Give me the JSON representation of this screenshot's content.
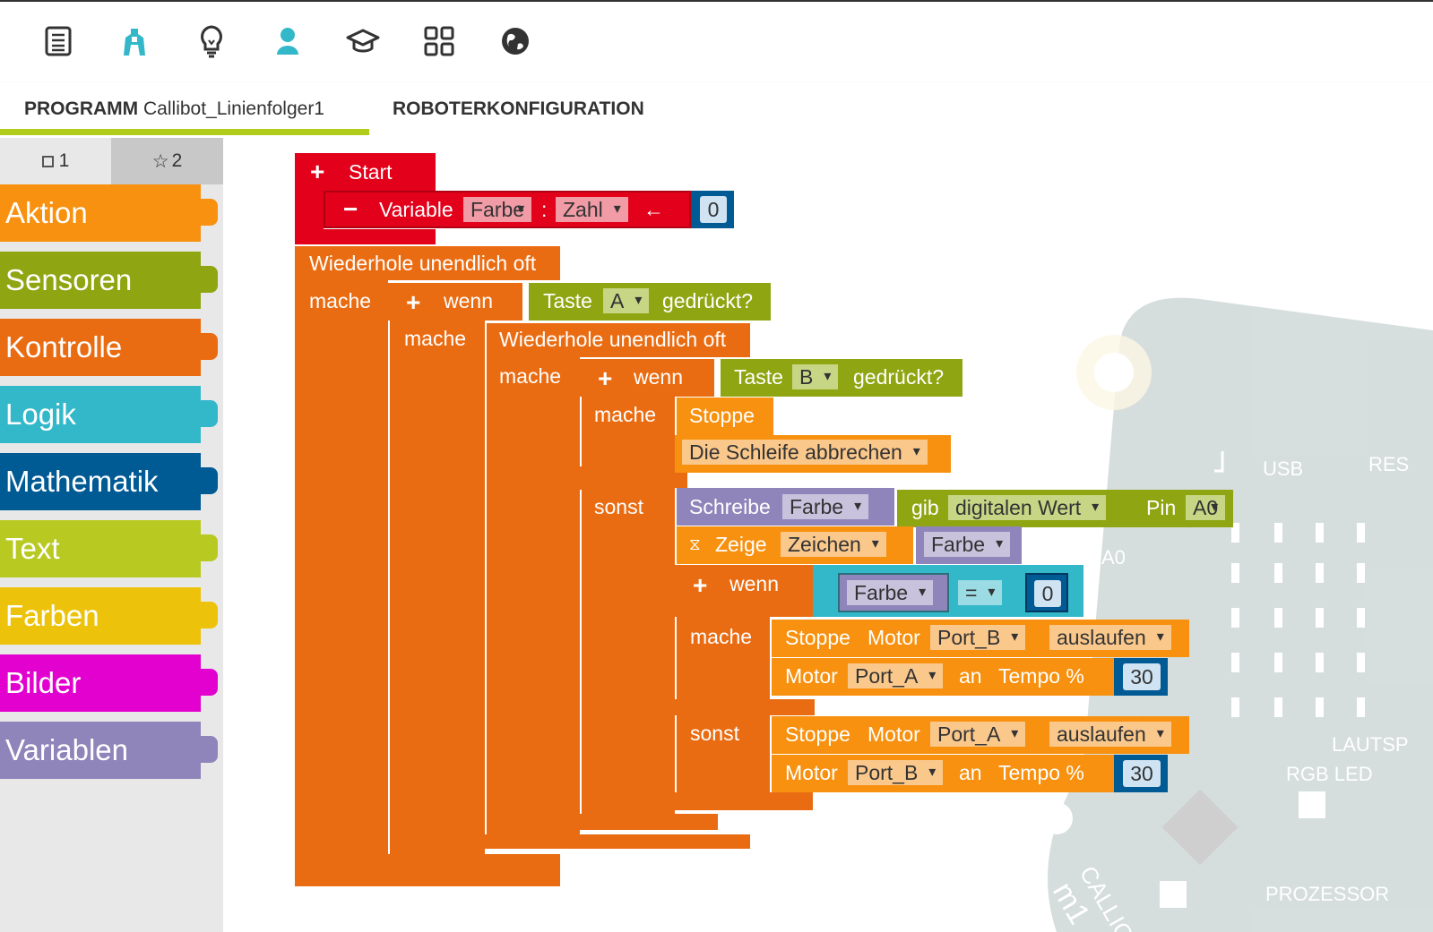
{
  "toolbar": {
    "icons": [
      "menu-list-icon",
      "robot-icon",
      "lightbulb-icon",
      "user-icon",
      "graduation-cap-icon",
      "apps-grid-icon",
      "globe-icon"
    ]
  },
  "tabs": {
    "program_prefix": "PROGRAMM",
    "program_name": "Callibot_Linienfolger1",
    "robot_config": "ROBOTERKONFIGURATION"
  },
  "sidebar": {
    "level1": "1",
    "level2": "2",
    "categories": [
      {
        "label": "Aktion",
        "color": "#f7910f"
      },
      {
        "label": "Sensoren",
        "color": "#8fa612"
      },
      {
        "label": "Kontrolle",
        "color": "#ea6c12"
      },
      {
        "label": "Logik",
        "color": "#33b8ca"
      },
      {
        "label": "Mathematik",
        "color": "#005a94"
      },
      {
        "label": "Text",
        "color": "#b8ca22"
      },
      {
        "label": "Farben",
        "color": "#ecc30a"
      },
      {
        "label": "Bilder",
        "color": "#e201cf"
      },
      {
        "label": "Variablen",
        "color": "#9085ba"
      }
    ]
  },
  "board_labels": {
    "usb": "USB",
    "res": "RES",
    "a0": "A0",
    "lautsp": "LAUTSP",
    "rgb": "RGB LED",
    "prozessor": "PROZESSOR",
    "calli": "CALLIO",
    "m1": "m1"
  },
  "program": {
    "start": "Start",
    "variable": "Variable",
    "var_name": "Farbe",
    "colon": ":",
    "var_type": "Zahl",
    "arrow": "←",
    "init_value": "0",
    "repeat_forever": "Wiederhole unendlich oft",
    "do": "mache",
    "if": "wenn",
    "else": "sonst",
    "button": "Taste",
    "button_a": "A",
    "button_b": "B",
    "pressed": "gedrückt?",
    "stop": "Stoppe",
    "break_loop": "Die Schleife abbrechen",
    "write": "Schreibe",
    "write_var": "Farbe",
    "get": "gib",
    "digital_value": "digitalen Wert",
    "pin": "Pin",
    "pin_name": "A0",
    "show": "Zeige",
    "show_type": "Zeichen",
    "show_var": "Farbe",
    "compare_var": "Farbe",
    "compare_op": "=",
    "compare_value": "0",
    "motor": "Motor",
    "coast": "auslaufen",
    "port_a": "Port_A",
    "port_b": "Port_B",
    "at": "an",
    "speed": "Tempo %",
    "speed_value": "30"
  }
}
